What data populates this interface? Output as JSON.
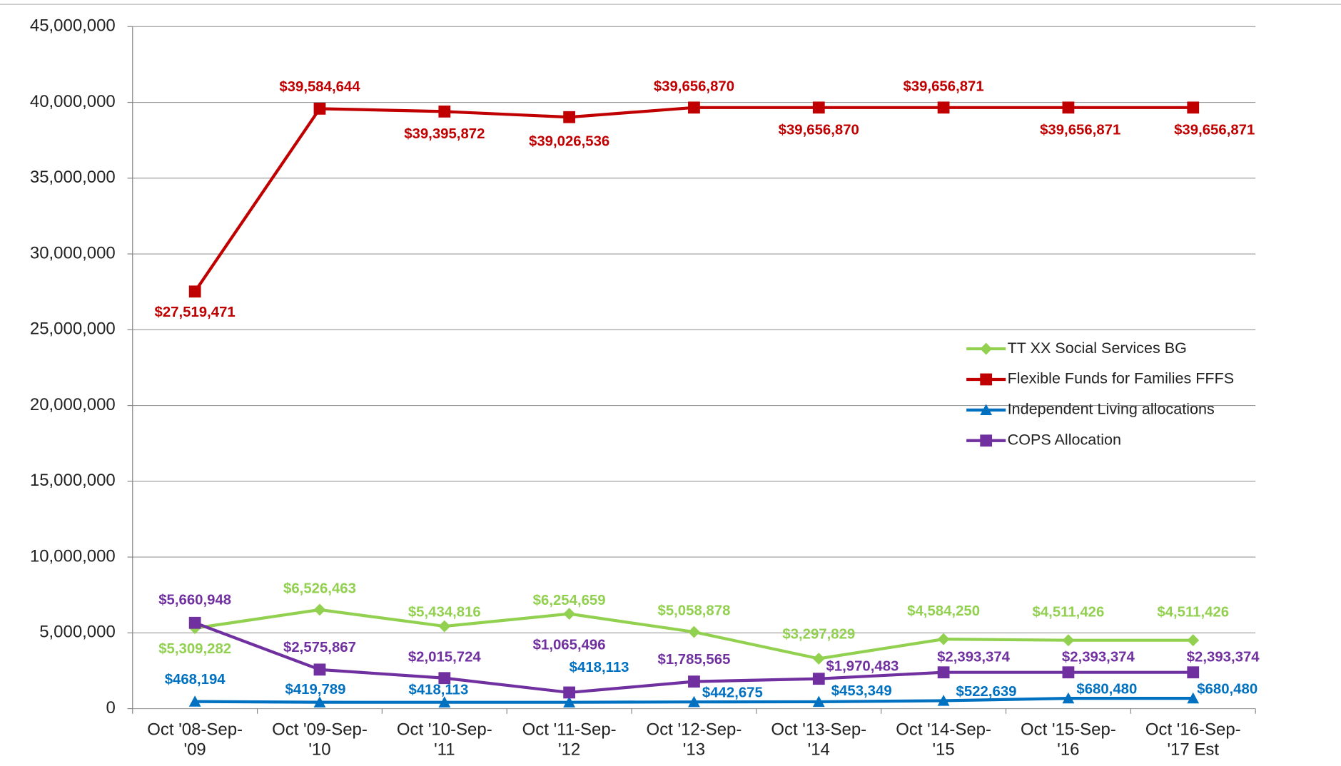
{
  "chart_data": {
    "type": "line",
    "categories": [
      "Oct '08-Sep-'09",
      "Oct '09-Sep-'10",
      "Oct '10-Sep-'11",
      "Oct '11-Sep-'12",
      "Oct '12-Sep-'13",
      "Oct '13-Sep-'14",
      "Oct '14-Sep-'15",
      "Oct '15-Sep-'16",
      "Oct '16-Sep-'17 Est"
    ],
    "ylim": [
      0,
      45000000
    ],
    "yticks": [
      0,
      {
        "value": 5000000,
        "label": "5,000,000"
      },
      {
        "value": 10000000,
        "label": "10,000,000"
      },
      {
        "value": 15000000,
        "label": "15,000,000"
      },
      {
        "value": 20000000,
        "label": "20,000,000"
      },
      {
        "value": 25000000,
        "label": "25,000,000"
      },
      {
        "value": 30000000,
        "label": "30,000,000"
      },
      {
        "value": 35000000,
        "label": "35,000,000"
      },
      {
        "value": 40000000,
        "label": "40,000,000"
      },
      {
        "value": 45000000,
        "label": "45,000,000"
      }
    ],
    "grid": true,
    "legend": "center right",
    "series": [
      {
        "name": "TT XX Social Services BG",
        "color": "#92d050",
        "marker": "diamond",
        "values": [
          5309282,
          6526463,
          5434816,
          6254659,
          5058878,
          3297829,
          4584250,
          4511426,
          4511426
        ],
        "value_labels": [
          "$5,309,282",
          "$6,526,463",
          "$5,434,816",
          "$6,254,659",
          "$5,058,878",
          "$3,297,829",
          "$4,584,250",
          "$4,511,426",
          "$4,511,426"
        ]
      },
      {
        "name": "Flexible Funds for Families FFFS",
        "color": "#c00000",
        "marker": "square",
        "values": [
          27519471,
          39584644,
          39395872,
          39026536,
          39656870,
          39656870,
          39656871,
          39656871,
          39656871
        ],
        "value_labels": [
          "$27,519,471",
          "$39,584,644",
          "$39,395,872",
          "$39,026,536",
          "$39,656,870",
          "$39,656,870",
          "$39,656,871",
          "$39,656,871",
          "$39,656,871"
        ]
      },
      {
        "name": "Independent Living allocations",
        "color": "#0070c0",
        "marker": "triangle",
        "values": [
          468194,
          419789,
          418113,
          418113,
          442675,
          453349,
          522639,
          680480,
          680480
        ],
        "value_labels": [
          "$468,194",
          "$419,789",
          "$418,113",
          "$418,113",
          "$442,675",
          "$453,349",
          "$522,639",
          "$680,480",
          "$680,480"
        ]
      },
      {
        "name": "COPS Allocation",
        "color": "#7030a0",
        "marker": "square",
        "values": [
          5660948,
          2575867,
          2015724,
          1065496,
          1785565,
          1970483,
          2393374,
          2393374,
          2393374
        ],
        "value_labels": [
          "$5,660,948",
          "$2,575,867",
          "$2,015,724",
          "$1,065,496",
          "$1,785,565",
          "$1,970,483",
          "$2,393,374",
          "$2,393,374",
          "$2,393,374"
        ]
      }
    ]
  }
}
